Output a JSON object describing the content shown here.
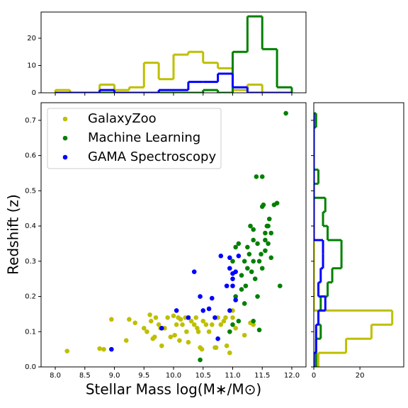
{
  "chart_data": [
    {
      "type": "scatter",
      "xlabel": "Stellar Mass log(M∗/M⊙)",
      "ylabel": "Redshift (z)",
      "xlim": [
        7.76,
        12.24
      ],
      "ylim": [
        0,
        0.75
      ],
      "xticks": [
        {
          "value": 8,
          "label": "8.0"
        },
        8.5,
        {
          "value": 9,
          "label": "9.0"
        },
        9.5,
        {
          "value": 10,
          "label": "10.0"
        },
        10.5,
        {
          "value": 11,
          "label": "11.0"
        },
        11.5,
        {
          "value": 12,
          "label": "12.0"
        }
      ],
      "yticks": [
        {
          "value": 0,
          "label": "0.0"
        },
        0.1,
        0.2,
        0.3,
        0.4,
        0.5,
        0.6,
        0.7
      ],
      "legend": "upper left",
      "series": [
        {
          "name": "GalaxyZoo",
          "color": "#bfbf00",
          "x": [
            8.2,
            8.75,
            8.82,
            8.95,
            9.2,
            9.25,
            9.35,
            9.5,
            9.55,
            9.6,
            9.62,
            9.65,
            9.68,
            9.7,
            9.75,
            9.78,
            9.8,
            9.85,
            9.9,
            9.95,
            10.0,
            10.02,
            10.05,
            10.08,
            10.1,
            10.12,
            10.15,
            10.2,
            10.22,
            10.25,
            10.3,
            10.35,
            10.38,
            10.4,
            10.42,
            10.45,
            10.48,
            10.5,
            10.55,
            10.6,
            10.65,
            10.7,
            10.72,
            10.75,
            10.8,
            10.85,
            10.88,
            10.9,
            10.95,
            11.0,
            11.05,
            11.2,
            11.3,
            11.35,
            11.0
          ],
          "values": [
            0.045,
            0.052,
            0.05,
            0.135,
            0.075,
            0.135,
            0.125,
            0.11,
            0.1,
            0.148,
            0.13,
            0.08,
            0.085,
            0.14,
            0.12,
            0.11,
            0.06,
            0.11,
            0.14,
            0.085,
            0.145,
            0.09,
            0.12,
            0.14,
            0.075,
            0.135,
            0.12,
            0.14,
            0.1,
            0.07,
            0.13,
            0.12,
            0.14,
            0.11,
            0.1,
            0.055,
            0.05,
            0.13,
            0.12,
            0.1,
            0.12,
            0.055,
            0.055,
            0.14,
            0.12,
            0.13,
            0.14,
            0.06,
            0.04,
            0.14,
            0.11,
            0.09,
            0.125,
            0.12,
            0.16
          ]
        },
        {
          "name": "Machine Learning",
          "color": "#008000",
          "x": [
            10.45,
            10.95,
            11.0,
            11.05,
            11.1,
            11.1,
            11.15,
            11.2,
            11.2,
            11.22,
            11.25,
            11.28,
            11.3,
            11.32,
            11.35,
            11.35,
            11.38,
            11.4,
            11.42,
            11.42,
            11.45,
            11.48,
            11.5,
            11.5,
            11.52,
            11.55,
            11.55,
            11.58,
            11.6,
            11.62,
            11.65,
            11.65,
            11.7,
            11.75,
            11.8,
            11.9,
            11.45,
            11.35,
            11.15,
            11.05,
            11.0,
            11.25,
            11.5,
            11.55,
            11.6,
            11.35
          ],
          "values": [
            0.02,
            0.1,
            0.12,
            0.2,
            0.13,
            0.35,
            0.22,
            0.18,
            0.3,
            0.23,
            0.28,
            0.32,
            0.4,
            0.27,
            0.36,
            0.3,
            0.25,
            0.54,
            0.35,
            0.2,
            0.3,
            0.32,
            0.54,
            0.455,
            0.46,
            0.38,
            0.33,
            0.4,
            0.35,
            0.42,
            0.38,
            0.31,
            0.46,
            0.465,
            0.23,
            0.72,
            0.105,
            0.13,
            0.26,
            0.34,
            0.3,
            0.34,
            0.28,
            0.36,
            0.4,
            0.39
          ]
        },
        {
          "name": "GAMA Spectroscopy",
          "color": "#0000ff",
          "x": [
            8.95,
            9.8,
            10.05,
            10.25,
            10.35,
            10.45,
            10.5,
            10.6,
            10.65,
            10.7,
            10.75,
            10.8,
            10.9,
            10.95,
            10.95,
            11.0,
            11.05,
            11.0,
            11.05,
            11.1,
            10.95,
            11.0
          ],
          "values": [
            0.05,
            0.11,
            0.16,
            0.14,
            0.27,
            0.2,
            0.16,
            0.165,
            0.195,
            0.14,
            0.08,
            0.315,
            0.23,
            0.31,
            0.28,
            0.265,
            0.27,
            0.25,
            0.19,
            0.315,
            0.16,
            0.23
          ]
        }
      ]
    },
    {
      "type": "histogram",
      "orientation": "vertical",
      "bins": [
        8,
        8.25,
        8.5,
        8.75,
        9,
        9.25,
        9.5,
        9.75,
        10,
        10.25,
        10.5,
        10.75,
        11,
        11.25,
        11.5,
        11.75,
        12
      ],
      "ylim": [
        0,
        29.6
      ],
      "yticks": [
        0,
        10,
        20
      ],
      "series": [
        {
          "color": "#bfbf00",
          "values": [
            1,
            0,
            0,
            3,
            1,
            2,
            11,
            5,
            14,
            15,
            11,
            9,
            1,
            3,
            0,
            0
          ]
        },
        {
          "color": "#008000",
          "values": [
            0,
            0,
            0,
            0,
            0,
            0,
            0,
            0,
            0,
            0,
            1,
            0,
            15,
            28,
            16,
            2
          ]
        },
        {
          "color": "#0000ff",
          "values": [
            0,
            0,
            0,
            1,
            0,
            0,
            0,
            1,
            1,
            4,
            4,
            7,
            2,
            0,
            0,
            0
          ]
        }
      ]
    },
    {
      "type": "histogram",
      "orientation": "horizontal",
      "bins": [
        0,
        0.04,
        0.08,
        0.12,
        0.16,
        0.2,
        0.24,
        0.28,
        0.32,
        0.36,
        0.4,
        0.44,
        0.48,
        0.52,
        0.56,
        0.6,
        0.64,
        0.68,
        0.72
      ],
      "xlim": [
        0,
        39
      ],
      "xticks": [
        0,
        20
      ],
      "series": [
        {
          "color": "#bfbf00",
          "values": [
            2,
            14,
            25,
            34,
            0,
            0,
            0,
            0,
            0,
            0,
            0,
            0,
            0,
            0,
            0,
            0,
            0,
            0
          ]
        },
        {
          "color": "#008000",
          "values": [
            1,
            1,
            3,
            2,
            3,
            6,
            8,
            12,
            12,
            6,
            4,
            5,
            0,
            2,
            0,
            0,
            0,
            1
          ]
        },
        {
          "color": "#0000ff",
          "values": [
            0,
            1,
            1,
            2,
            5,
            2,
            3,
            4,
            4,
            0,
            0,
            0,
            0,
            0,
            0,
            0,
            0,
            0
          ]
        }
      ]
    }
  ]
}
